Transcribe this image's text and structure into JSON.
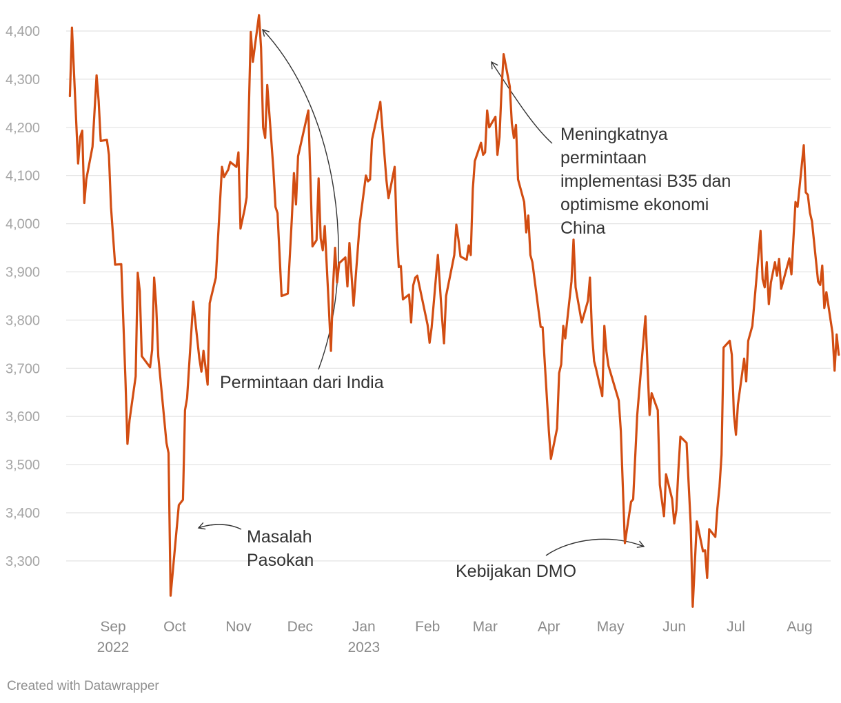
{
  "chart_data": {
    "type": "line",
    "title": "",
    "xlabel": "",
    "ylabel": "",
    "ylim": [
      3200,
      4440
    ],
    "y_ticks": [
      "4,400",
      "4,300",
      "4,200",
      "4,100",
      "4,000",
      "3,900",
      "3,800",
      "3,700",
      "3,600",
      "3,500",
      "3,400",
      "3,300"
    ],
    "x_ticks": [
      {
        "label": "Sep",
        "sub": "2022",
        "date": "2022-09-01"
      },
      {
        "label": "Oct",
        "sub": "",
        "date": "2022-10-01"
      },
      {
        "label": "Nov",
        "sub": "",
        "date": "2022-11-01"
      },
      {
        "label": "Dec",
        "sub": "",
        "date": "2022-12-01"
      },
      {
        "label": "Jan",
        "sub": "2023",
        "date": "2023-01-01"
      },
      {
        "label": "Feb",
        "sub": "",
        "date": "2023-02-01"
      },
      {
        "label": "Mar",
        "sub": "",
        "date": "2023-03-01"
      },
      {
        "label": "Apr",
        "sub": "",
        "date": "2023-04-01"
      },
      {
        "label": "May",
        "sub": "",
        "date": "2023-05-01"
      },
      {
        "label": "Jun",
        "sub": "",
        "date": "2023-06-01"
      },
      {
        "label": "Jul",
        "sub": "",
        "date": "2023-07-01"
      },
      {
        "label": "Aug",
        "sub": "",
        "date": "2023-08-01"
      }
    ],
    "grid": true,
    "legend": "none",
    "line_color": "#d24d12",
    "series": [
      {
        "points": [
          [
            "2022-08-11",
            4265
          ],
          [
            "2022-08-12",
            4407
          ],
          [
            "2022-08-15",
            4125
          ],
          [
            "2022-08-16",
            4180
          ],
          [
            "2022-08-17",
            4193
          ],
          [
            "2022-08-18",
            4043
          ],
          [
            "2022-08-19",
            4092
          ],
          [
            "2022-08-22",
            4160
          ],
          [
            "2022-08-24",
            4308
          ],
          [
            "2022-08-25",
            4255
          ],
          [
            "2022-08-26",
            4172
          ],
          [
            "2022-08-29",
            4174
          ],
          [
            "2022-08-30",
            4143
          ],
          [
            "2022-08-31",
            4035
          ],
          [
            "2022-09-02",
            3915
          ],
          [
            "2022-09-05",
            3916
          ],
          [
            "2022-09-07",
            3680
          ],
          [
            "2022-09-08",
            3543
          ],
          [
            "2022-09-09",
            3592
          ],
          [
            "2022-09-12",
            3683
          ],
          [
            "2022-09-13",
            3898
          ],
          [
            "2022-09-14",
            3860
          ],
          [
            "2022-09-15",
            3725
          ],
          [
            "2022-09-19",
            3702
          ],
          [
            "2022-09-20",
            3738
          ],
          [
            "2022-09-21",
            3888
          ],
          [
            "2022-09-22",
            3830
          ],
          [
            "2022-09-23",
            3725
          ],
          [
            "2022-09-27",
            3545
          ],
          [
            "2022-09-28",
            3524
          ],
          [
            "2022-09-29",
            3228
          ],
          [
            "2022-10-03",
            3416
          ],
          [
            "2022-10-05",
            3427
          ],
          [
            "2022-10-06",
            3613
          ],
          [
            "2022-10-07",
            3638
          ],
          [
            "2022-10-10",
            3838
          ],
          [
            "2022-10-13",
            3720
          ],
          [
            "2022-10-14",
            3693
          ],
          [
            "2022-10-15",
            3736
          ],
          [
            "2022-10-17",
            3666
          ],
          [
            "2022-10-18",
            3835
          ],
          [
            "2022-10-21",
            3888
          ],
          [
            "2022-10-24",
            4118
          ],
          [
            "2022-10-25",
            4097
          ],
          [
            "2022-10-27",
            4112
          ],
          [
            "2022-10-28",
            4128
          ],
          [
            "2022-10-31",
            4118
          ],
          [
            "2022-11-01",
            4148
          ],
          [
            "2022-11-02",
            3990
          ],
          [
            "2022-11-04",
            4030
          ],
          [
            "2022-11-05",
            4055
          ],
          [
            "2022-11-07",
            4398
          ],
          [
            "2022-11-08",
            4336
          ],
          [
            "2022-11-11",
            4433
          ],
          [
            "2022-11-12",
            4365
          ],
          [
            "2022-11-13",
            4200
          ],
          [
            "2022-11-14",
            4178
          ],
          [
            "2022-11-15",
            4288
          ],
          [
            "2022-11-18",
            4113
          ],
          [
            "2022-11-19",
            4035
          ],
          [
            "2022-11-20",
            4022
          ],
          [
            "2022-11-22",
            3850
          ],
          [
            "2022-11-25",
            3855
          ],
          [
            "2022-11-27",
            4012
          ],
          [
            "2022-11-28",
            4105
          ],
          [
            "2022-11-29",
            4040
          ],
          [
            "2022-11-30",
            4140
          ],
          [
            "2022-12-05",
            4235
          ],
          [
            "2022-12-07",
            3953
          ],
          [
            "2022-12-09",
            3966
          ],
          [
            "2022-12-10",
            4094
          ],
          [
            "2022-12-11",
            3970
          ],
          [
            "2022-12-12",
            3945
          ],
          [
            "2022-12-13",
            3995
          ],
          [
            "2022-12-15",
            3825
          ],
          [
            "2022-12-16",
            3736
          ],
          [
            "2022-12-17",
            3870
          ],
          [
            "2022-12-18",
            3950
          ],
          [
            "2022-12-19",
            3878
          ],
          [
            "2022-12-20",
            3918
          ],
          [
            "2022-12-23",
            3930
          ],
          [
            "2022-12-24",
            3870
          ],
          [
            "2022-12-25",
            3960
          ],
          [
            "2022-12-27",
            3830
          ],
          [
            "2022-12-30",
            4000
          ],
          [
            "2023-01-02",
            4100
          ],
          [
            "2023-01-03",
            4088
          ],
          [
            "2023-01-04",
            4092
          ],
          [
            "2023-01-05",
            4175
          ],
          [
            "2023-01-09",
            4253
          ],
          [
            "2023-01-12",
            4090
          ],
          [
            "2023-01-13",
            4053
          ],
          [
            "2023-01-16",
            4118
          ],
          [
            "2023-01-17",
            3985
          ],
          [
            "2023-01-18",
            3910
          ],
          [
            "2023-01-19",
            3912
          ],
          [
            "2023-01-20",
            3843
          ],
          [
            "2023-01-23",
            3853
          ],
          [
            "2023-01-24",
            3795
          ],
          [
            "2023-01-25",
            3872
          ],
          [
            "2023-01-26",
            3888
          ],
          [
            "2023-01-27",
            3892
          ],
          [
            "2023-02-01",
            3790
          ],
          [
            "2023-02-02",
            3753
          ],
          [
            "2023-02-03",
            3785
          ],
          [
            "2023-02-06",
            3935
          ],
          [
            "2023-02-08",
            3808
          ],
          [
            "2023-02-09",
            3752
          ],
          [
            "2023-02-10",
            3850
          ],
          [
            "2023-02-14",
            3935
          ],
          [
            "2023-02-15",
            3998
          ],
          [
            "2023-02-16",
            3968
          ],
          [
            "2023-02-17",
            3932
          ],
          [
            "2023-02-20",
            3925
          ],
          [
            "2023-02-21",
            3955
          ],
          [
            "2023-02-22",
            3935
          ],
          [
            "2023-02-23",
            4072
          ],
          [
            "2023-02-24",
            4130
          ],
          [
            "2023-02-27",
            4168
          ],
          [
            "2023-02-28",
            4143
          ],
          [
            "2023-03-01",
            4148
          ],
          [
            "2023-03-02",
            4235
          ],
          [
            "2023-03-03",
            4200
          ],
          [
            "2023-03-06",
            4222
          ],
          [
            "2023-03-07",
            4143
          ],
          [
            "2023-03-08",
            4180
          ],
          [
            "2023-03-09",
            4280
          ],
          [
            "2023-03-10",
            4352
          ],
          [
            "2023-03-13",
            4285
          ],
          [
            "2023-03-14",
            4208
          ],
          [
            "2023-03-15",
            4178
          ],
          [
            "2023-03-16",
            4205
          ],
          [
            "2023-03-17",
            4092
          ],
          [
            "2023-03-20",
            4045
          ],
          [
            "2023-03-21",
            3982
          ],
          [
            "2023-03-22",
            4017
          ],
          [
            "2023-03-23",
            3935
          ],
          [
            "2023-03-24",
            3920
          ],
          [
            "2023-03-28",
            3786
          ],
          [
            "2023-03-29",
            3785
          ],
          [
            "2023-04-01",
            3570
          ],
          [
            "2023-04-02",
            3512
          ],
          [
            "2023-04-05",
            3575
          ],
          [
            "2023-04-06",
            3690
          ],
          [
            "2023-04-07",
            3708
          ],
          [
            "2023-04-08",
            3788
          ],
          [
            "2023-04-09",
            3762
          ],
          [
            "2023-04-12",
            3880
          ],
          [
            "2023-04-13",
            3967
          ],
          [
            "2023-04-14",
            3868
          ],
          [
            "2023-04-17",
            3795
          ],
          [
            "2023-04-20",
            3840
          ],
          [
            "2023-04-21",
            3888
          ],
          [
            "2023-04-22",
            3772
          ],
          [
            "2023-04-23",
            3715
          ],
          [
            "2023-04-24",
            3698
          ],
          [
            "2023-04-27",
            3642
          ],
          [
            "2023-04-28",
            3788
          ],
          [
            "2023-04-29",
            3735
          ],
          [
            "2023-04-30",
            3705
          ],
          [
            "2023-05-05",
            3633
          ],
          [
            "2023-05-06",
            3570
          ],
          [
            "2023-05-08",
            3337
          ],
          [
            "2023-05-11",
            3423
          ],
          [
            "2023-05-12",
            3428
          ],
          [
            "2023-05-14",
            3603
          ],
          [
            "2023-05-18",
            3808
          ],
          [
            "2023-05-20",
            3603
          ],
          [
            "2023-05-21",
            3648
          ],
          [
            "2023-05-24",
            3613
          ],
          [
            "2023-05-25",
            3458
          ],
          [
            "2023-05-27",
            3393
          ],
          [
            "2023-05-28",
            3480
          ],
          [
            "2023-05-31",
            3428
          ],
          [
            "2023-06-01",
            3378
          ],
          [
            "2023-06-02",
            3405
          ],
          [
            "2023-06-03",
            3488
          ],
          [
            "2023-06-04",
            3558
          ],
          [
            "2023-06-07",
            3545
          ],
          [
            "2023-06-09",
            3375
          ],
          [
            "2023-06-10",
            3205
          ],
          [
            "2023-06-12",
            3382
          ],
          [
            "2023-06-15",
            3320
          ],
          [
            "2023-06-16",
            3322
          ],
          [
            "2023-06-17",
            3265
          ],
          [
            "2023-06-18",
            3366
          ],
          [
            "2023-06-21",
            3350
          ],
          [
            "2023-06-22",
            3410
          ],
          [
            "2023-06-23",
            3453
          ],
          [
            "2023-06-24",
            3520
          ],
          [
            "2023-06-25",
            3743
          ],
          [
            "2023-06-28",
            3757
          ],
          [
            "2023-06-29",
            3728
          ],
          [
            "2023-06-30",
            3605
          ],
          [
            "2023-07-01",
            3562
          ],
          [
            "2023-07-02",
            3625
          ],
          [
            "2023-07-05",
            3720
          ],
          [
            "2023-07-06",
            3673
          ],
          [
            "2023-07-07",
            3757
          ],
          [
            "2023-07-09",
            3788
          ],
          [
            "2023-07-13",
            3985
          ],
          [
            "2023-07-14",
            3885
          ],
          [
            "2023-07-15",
            3868
          ],
          [
            "2023-07-16",
            3920
          ],
          [
            "2023-07-17",
            3833
          ],
          [
            "2023-07-18",
            3878
          ],
          [
            "2023-07-20",
            3920
          ],
          [
            "2023-07-21",
            3892
          ],
          [
            "2023-07-22",
            3927
          ],
          [
            "2023-07-23",
            3865
          ],
          [
            "2023-07-27",
            3928
          ],
          [
            "2023-07-28",
            3895
          ],
          [
            "2023-07-30",
            4045
          ],
          [
            "2023-07-31",
            4035
          ],
          [
            "2023-08-03",
            4163
          ],
          [
            "2023-08-04",
            4065
          ],
          [
            "2023-08-05",
            4060
          ],
          [
            "2023-08-06",
            4023
          ],
          [
            "2023-08-07",
            4005
          ],
          [
            "2023-08-10",
            3880
          ],
          [
            "2023-08-11",
            3873
          ],
          [
            "2023-08-12",
            3913
          ],
          [
            "2023-08-13",
            3825
          ],
          [
            "2023-08-14",
            3858
          ],
          [
            "2023-08-17",
            3773
          ],
          [
            "2023-08-18",
            3695
          ],
          [
            "2023-08-19",
            3770
          ],
          [
            "2023-08-20",
            3728
          ]
        ]
      }
    ],
    "annotations": [
      {
        "id": "india",
        "lines": [
          "Permintaan dari India"
        ]
      },
      {
        "id": "b35",
        "lines": [
          "Meningkatnya",
          "permintaan",
          "implementasi B35 dan",
          "optimisme ekonomi",
          "China"
        ]
      },
      {
        "id": "pasokan",
        "lines": [
          "Masalah",
          "Pasokan"
        ]
      },
      {
        "id": "dmo",
        "lines": [
          "Kebijakan DMO"
        ]
      }
    ]
  },
  "footer": "Created with Datawrapper"
}
